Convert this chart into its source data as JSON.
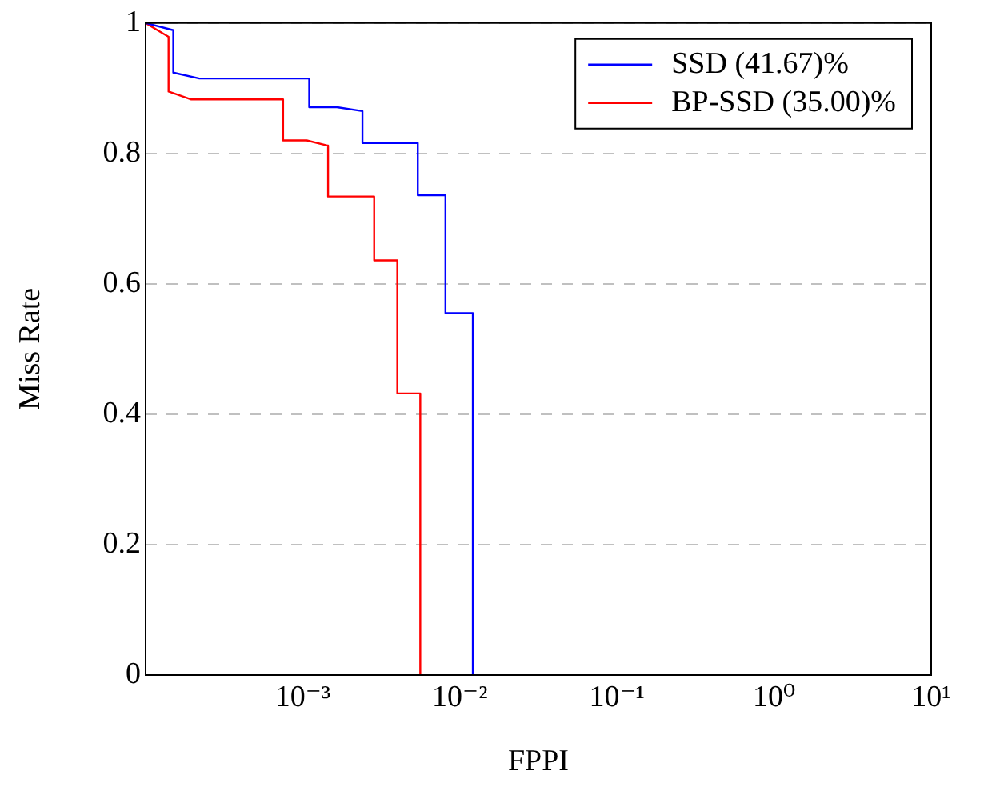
{
  "chart_data": {
    "type": "line",
    "xlabel": "FPPI",
    "ylabel": "Miss Rate",
    "log": "x",
    "xlim": [
      0.0001,
      10
    ],
    "xticks": [
      {
        "value": 0.001,
        "label": "10⁻³"
      },
      {
        "value": 0.01,
        "label": "10⁻²"
      },
      {
        "value": 0.1,
        "label": "10⁻¹"
      },
      {
        "value": 1,
        "label": "10⁰"
      },
      {
        "value": 10,
        "label": "10¹"
      }
    ],
    "ylim": [
      0,
      1
    ],
    "yticks": [
      0,
      0.2,
      0.4,
      0.6,
      0.8,
      1
    ],
    "grid": "y",
    "legend": "top right",
    "marker": "none",
    "line_style": "solid",
    "series": [
      {
        "name": "SSD (41.67)%",
        "color": "#0000ff",
        "x": [
          0.0001,
          0.00015,
          0.00015,
          0.00022,
          0.0011,
          0.0011,
          0.00165,
          0.0024,
          0.0024,
          0.0054,
          0.0054,
          0.0081,
          0.0081,
          0.0121,
          0.0121
        ],
        "values": [
          1,
          0.989,
          0.924,
          0.915,
          0.915,
          0.871,
          0.871,
          0.865,
          0.816,
          0.816,
          0.736,
          0.736,
          0.555,
          0.555,
          0
        ]
      },
      {
        "name": "BP-SSD (35.00)%",
        "color": "#ff0000",
        "x": [
          0.0001,
          0.00014,
          0.00014,
          0.000194,
          0.00075,
          0.00075,
          0.00106,
          0.00145,
          0.00145,
          0.00285,
          0.00285,
          0.004,
          0.004,
          0.0056,
          0.0056
        ],
        "values": [
          1,
          0.979,
          0.895,
          0.883,
          0.883,
          0.82,
          0.82,
          0.812,
          0.734,
          0.734,
          0.636,
          0.636,
          0.432,
          0.432,
          0
        ]
      }
    ]
  }
}
